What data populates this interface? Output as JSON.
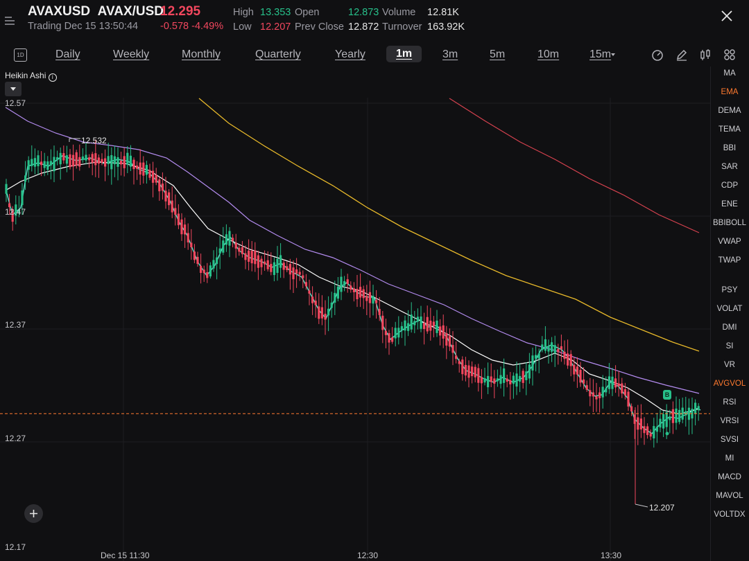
{
  "header": {
    "symbol": "AVAXUSD",
    "pair": "AVAX/USD",
    "price": "12.295",
    "trading": "Trading Dec 15 13:50:44",
    "change": "-0.578",
    "change_pct": "-4.49%",
    "high_label": "High",
    "high": "13.353",
    "low_label": "Low",
    "low": "12.207",
    "open_label": "Open",
    "open": "12.873",
    "prev_close_label": "Prev Close",
    "prev_close": "12.872",
    "volume_label": "Volume",
    "volume": "12.81K",
    "turnover_label": "Turnover",
    "turnover": "163.92K"
  },
  "tabs": {
    "day_icon": "1D",
    "items": [
      "Daily",
      "Weekly",
      "Monthly",
      "Quarterly",
      "Yearly",
      "1m",
      "3m",
      "5m",
      "10m",
      "15m"
    ],
    "active": "1m"
  },
  "toolbar_icons": [
    "gauge-icon",
    "pencil-icon",
    "compare-icon",
    "grid-icon"
  ],
  "chart": {
    "type_label": "Heikin Ashi",
    "y_labels": [
      "12.57",
      "12.47",
      "12.37",
      "12.27",
      "12.17"
    ],
    "x_labels": [
      "Dec 15 11:30",
      "12:30",
      "13:30"
    ],
    "high_marker": "12.532",
    "low_marker": "12.207",
    "buy_marker": "B",
    "colors": {
      "up": "#27c08a",
      "down": "#f2475e",
      "ma1": "#ffffff",
      "ma2": "#b48cf0",
      "ma3": "#e8b92a",
      "ma4": "#d6424f",
      "price_line": "#ff7a2f"
    }
  },
  "chart_data": {
    "type": "candlestick",
    "y_range": [
      12.17,
      12.6
    ],
    "price_line": 12.295,
    "high": 12.532,
    "low": 12.207
  },
  "indicators_main": [
    "MA",
    "EMA",
    "DEMA",
    "TEMA",
    "BBI",
    "SAR",
    "CDP",
    "ENE",
    "BBIBOLL",
    "VWAP",
    "TWAP"
  ],
  "indicators_sub": [
    "PSY",
    "VOLAT",
    "DMI",
    "SI",
    "VR",
    "AVGVOL",
    "RSI",
    "VRSI",
    "SVSI",
    "MI",
    "MACD",
    "MAVOL",
    "VOLTDX"
  ],
  "active_main": "EMA",
  "active_sub": "AVGVOL"
}
